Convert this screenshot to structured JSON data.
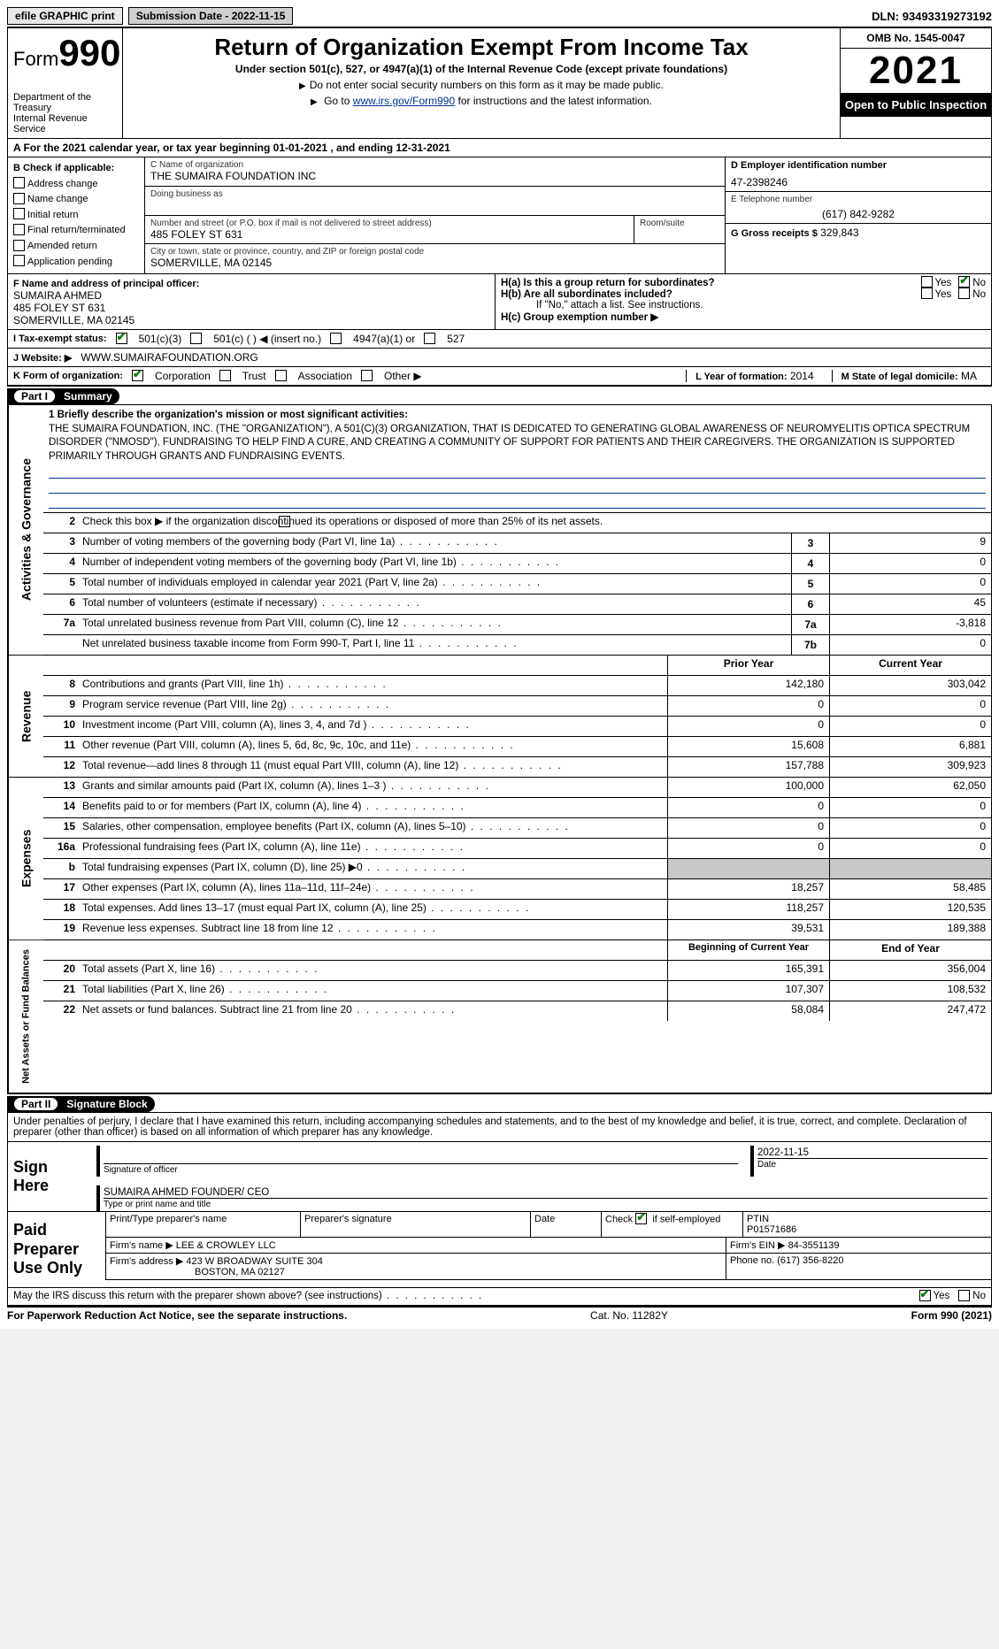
{
  "top": {
    "efile": "efile GRAPHIC print",
    "submission": "Submission Date - 2022-11-15",
    "dln_label": "DLN:",
    "dln": "93493319273192"
  },
  "header": {
    "form_word": "Form",
    "form_no": "990",
    "title": "Return of Organization Exempt From Income Tax",
    "subtitle": "Under section 501(c), 527, or 4947(a)(1) of the Internal Revenue Code (except private foundations)",
    "note1": "Do not enter social security numbers on this form as it may be made public.",
    "note2_prefix": "Go to ",
    "note2_link": "www.irs.gov/Form990",
    "note2_suffix": " for instructions and the latest information.",
    "dept": "Department of the Treasury\nInternal Revenue Service",
    "omb": "OMB No. 1545-0047",
    "year": "2021",
    "open": "Open to Public Inspection"
  },
  "period": {
    "text": "A For the 2021 calendar year, or tax year beginning 01-01-2021   , and ending 12-31-2021"
  },
  "boxB": {
    "label": "B Check if applicable:",
    "items": [
      "Address change",
      "Name change",
      "Initial return",
      "Final return/terminated",
      "Amended return",
      "Application pending"
    ]
  },
  "boxC": {
    "name_label": "C Name of organization",
    "name": "THE SUMAIRA FOUNDATION INC",
    "dba_label": "Doing business as",
    "addr_label": "Number and street (or P.O. box if mail is not delivered to street address)",
    "room_label": "Room/suite",
    "addr": "485 FOLEY ST 631",
    "city_label": "City or town, state or province, country, and ZIP or foreign postal code",
    "city": "SOMERVILLE, MA  02145"
  },
  "boxD": {
    "label": "D Employer identification number",
    "value": "47-2398246"
  },
  "boxE": {
    "label": "E Telephone number",
    "value": "(617) 842-9282"
  },
  "boxG": {
    "label": "G Gross receipts $",
    "value": "329,843"
  },
  "boxF": {
    "label": "F  Name and address of principal officer:",
    "name": "SUMAIRA AHMED",
    "addr1": "485 FOLEY ST 631",
    "addr2": "SOMERVILLE, MA  02145"
  },
  "boxH": {
    "a": "H(a)  Is this a group return for subordinates?",
    "b": "H(b)  Are all subordinates included?",
    "b_note": "If \"No,\" attach a list. See instructions.",
    "c": "H(c)  Group exemption number ▶",
    "yes": "Yes",
    "no": "No"
  },
  "boxI": {
    "label": "I  Tax-exempt status:",
    "o1": "501(c)(3)",
    "o2": "501(c) (  ) ◀ (insert no.)",
    "o3": "4947(a)(1) or",
    "o4": "527"
  },
  "boxJ": {
    "label": "J  Website: ▶",
    "value": "WWW.SUMAIRAFOUNDATION.ORG"
  },
  "boxK": {
    "label": "K Form of organization:",
    "o1": "Corporation",
    "o2": "Trust",
    "o3": "Association",
    "o4": "Other ▶"
  },
  "boxL": {
    "label": "L Year of formation:",
    "value": "2014"
  },
  "boxM": {
    "label": "M State of legal domicile:",
    "value": "MA"
  },
  "parts": {
    "p1": "Part I",
    "p1t": "Summary",
    "p2": "Part II",
    "p2t": "Signature Block"
  },
  "summary": {
    "l1_label": "1  Briefly describe the organization's mission or most significant activities:",
    "l1_text": "THE SUMAIRA FOUNDATION, INC. (THE \"ORGANIZATION\"), A 501(C)(3) ORGANIZATION, THAT IS DEDICATED TO GENERATING GLOBAL AWARENESS OF NEUROMYELITIS OPTICA SPECTRUM DISORDER (\"NMOSD\"), FUNDRAISING TO HELP FIND A CURE, AND CREATING A COMMUNITY OF SUPPORT FOR PATIENTS AND THEIR CAREGIVERS. THE ORGANIZATION IS SUPPORTED PRIMARILY THROUGH GRANTS AND FUNDRAISING EVENTS.",
    "l2": "Check this box ▶        if the organization discontinued its operations or disposed of more than 25% of its net assets.",
    "rows": [
      {
        "n": "3",
        "d": "Number of voting members of the governing body (Part VI, line 1a)",
        "box": "3",
        "v": "9"
      },
      {
        "n": "4",
        "d": "Number of independent voting members of the governing body (Part VI, line 1b)",
        "box": "4",
        "v": "0"
      },
      {
        "n": "5",
        "d": "Total number of individuals employed in calendar year 2021 (Part V, line 2a)",
        "box": "5",
        "v": "0"
      },
      {
        "n": "6",
        "d": "Total number of volunteers (estimate if necessary)",
        "box": "6",
        "v": "45"
      },
      {
        "n": "7a",
        "d": "Total unrelated business revenue from Part VIII, column (C), line 12",
        "box": "7a",
        "v": "-3,818"
      },
      {
        "n": "",
        "d": "Net unrelated business taxable income from Form 990-T, Part I, line 11",
        "box": "7b",
        "v": "0"
      }
    ],
    "hdr_prior": "Prior Year",
    "hdr_curr": "Current Year",
    "revenue": [
      {
        "n": "8",
        "d": "Contributions and grants (Part VIII, line 1h)",
        "p": "142,180",
        "c": "303,042"
      },
      {
        "n": "9",
        "d": "Program service revenue (Part VIII, line 2g)",
        "p": "0",
        "c": "0"
      },
      {
        "n": "10",
        "d": "Investment income (Part VIII, column (A), lines 3, 4, and 7d )",
        "p": "0",
        "c": "0"
      },
      {
        "n": "11",
        "d": "Other revenue (Part VIII, column (A), lines 5, 6d, 8c, 9c, 10c, and 11e)",
        "p": "15,608",
        "c": "6,881"
      },
      {
        "n": "12",
        "d": "Total revenue—add lines 8 through 11 (must equal Part VIII, column (A), line 12)",
        "p": "157,788",
        "c": "309,923"
      }
    ],
    "expenses": [
      {
        "n": "13",
        "d": "Grants and similar amounts paid (Part IX, column (A), lines 1–3 )",
        "p": "100,000",
        "c": "62,050"
      },
      {
        "n": "14",
        "d": "Benefits paid to or for members (Part IX, column (A), line 4)",
        "p": "0",
        "c": "0"
      },
      {
        "n": "15",
        "d": "Salaries, other compensation, employee benefits (Part IX, column (A), lines 5–10)",
        "p": "0",
        "c": "0"
      },
      {
        "n": "16a",
        "d": "Professional fundraising fees (Part IX, column (A), line 11e)",
        "p": "0",
        "c": "0"
      },
      {
        "n": "b",
        "d": "Total fundraising expenses (Part IX, column (D), line 25) ▶0",
        "shadeP": true,
        "shadeC": true,
        "p": "",
        "c": ""
      },
      {
        "n": "17",
        "d": "Other expenses (Part IX, column (A), lines 11a–11d, 11f–24e)",
        "p": "18,257",
        "c": "58,485"
      },
      {
        "n": "18",
        "d": "Total expenses. Add lines 13–17 (must equal Part IX, column (A), line 25)",
        "p": "118,257",
        "c": "120,535"
      },
      {
        "n": "19",
        "d": "Revenue less expenses. Subtract line 18 from line 12",
        "p": "39,531",
        "c": "189,388"
      }
    ],
    "hdr_beg": "Beginning of Current Year",
    "hdr_end": "End of Year",
    "netassets": [
      {
        "n": "20",
        "d": "Total assets (Part X, line 16)",
        "p": "165,391",
        "c": "356,004"
      },
      {
        "n": "21",
        "d": "Total liabilities (Part X, line 26)",
        "p": "107,307",
        "c": "108,532"
      },
      {
        "n": "22",
        "d": "Net assets or fund balances. Subtract line 21 from line 20",
        "p": "58,084",
        "c": "247,472"
      }
    ]
  },
  "sides": {
    "gov": "Activities & Governance",
    "rev": "Revenue",
    "exp": "Expenses",
    "net": "Net Assets or Fund Balances"
  },
  "sig": {
    "declare": "Under penalties of perjury, I declare that I have examined this return, including accompanying schedules and statements, and to the best of my knowledge and belief, it is true, correct, and complete. Declaration of preparer (other than officer) is based on all information of which preparer has any knowledge.",
    "sign_here": "Sign Here",
    "sig_officer": "Signature of officer",
    "date": "Date",
    "date_val": "2022-11-15",
    "name_officer": "SUMAIRA AHMED  FOUNDER/ CEO",
    "type_name": "Type or print name and title"
  },
  "prep": {
    "title": "Paid Preparer Use Only",
    "h1": "Print/Type preparer's name",
    "h2": "Preparer's signature",
    "h3": "Date",
    "h4a": "Check",
    "h4b": "if self-employed",
    "h5": "PTIN",
    "ptin": "P01571686",
    "firm_label": "Firm's name   ▶",
    "firm": "LEE & CROWLEY LLC",
    "ein_label": "Firm's EIN ▶",
    "ein": "84-3551139",
    "addr_label": "Firm's address ▶",
    "addr": "423 W BROADWAY SUITE 304",
    "addr2": "BOSTON, MA  02127",
    "phone_label": "Phone no.",
    "phone": "(617) 356-8220"
  },
  "discuss": {
    "q": "May the IRS discuss this return with the preparer shown above? (see instructions)",
    "yes": "Yes",
    "no": "No"
  },
  "footer": {
    "left": "For Paperwork Reduction Act Notice, see the separate instructions.",
    "mid": "Cat. No. 11282Y",
    "right": "Form 990 (2021)"
  }
}
